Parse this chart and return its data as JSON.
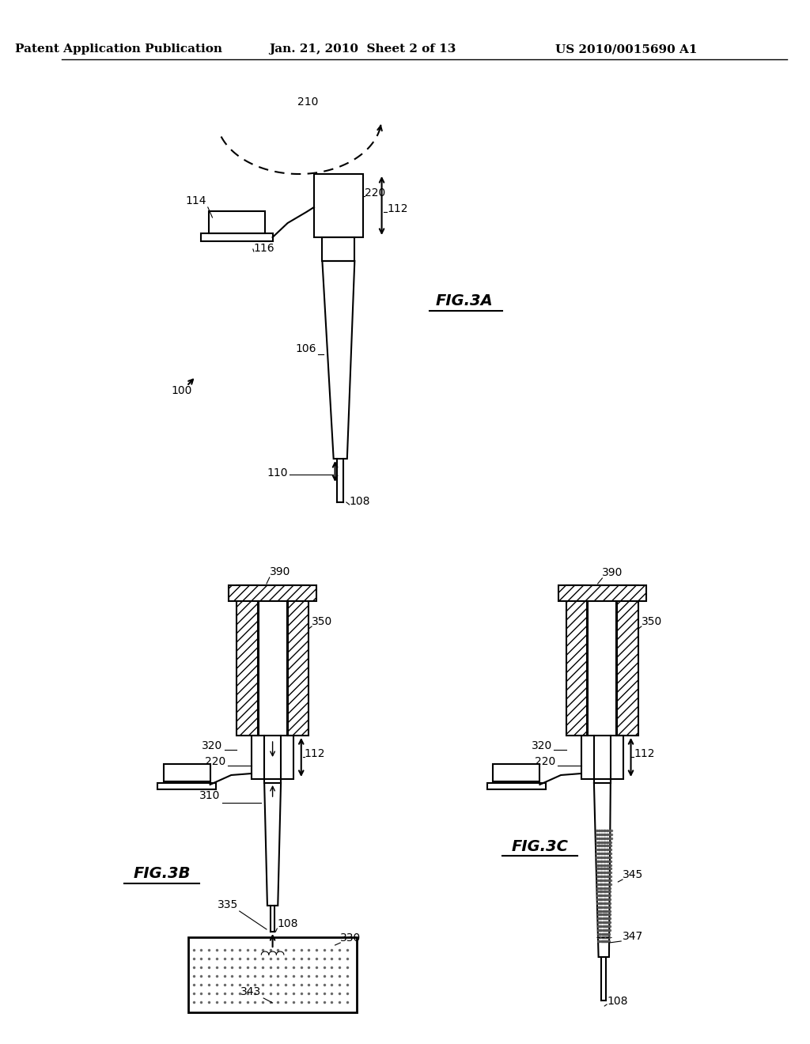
{
  "bg_color": "#ffffff",
  "header_left": "Patent Application Publication",
  "header_mid": "Jan. 21, 2010  Sheet 2 of 13",
  "header_right": "US 2010/0015690 A1",
  "fig3a_label": "FIG.3A",
  "fig3b_label": "FIG.3B",
  "fig3c_label": "FIG.3C",
  "line_color": "#000000",
  "text_color": "#000000"
}
